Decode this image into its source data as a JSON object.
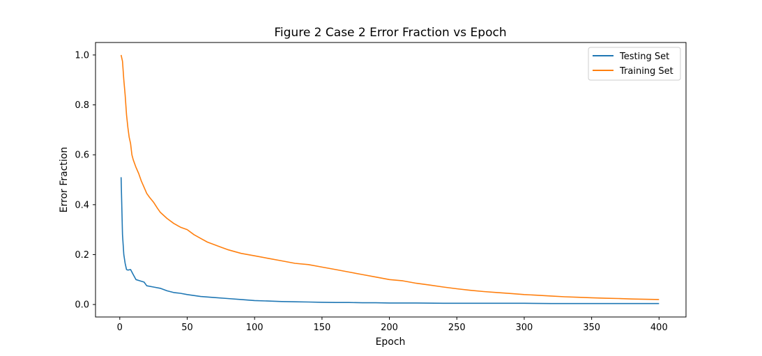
{
  "chart_data": {
    "type": "line",
    "title": "Figure 2 Case 2 Error Fraction vs Epoch",
    "xlabel": "Epoch",
    "ylabel": "Error Fraction",
    "xlim": [
      -18,
      420
    ],
    "ylim": [
      -0.05,
      1.05
    ],
    "x_ticks": [
      0,
      50,
      100,
      150,
      200,
      250,
      300,
      350,
      400
    ],
    "y_ticks": [
      0.0,
      0.2,
      0.4,
      0.6,
      0.8,
      1.0
    ],
    "x_tick_labels": [
      "0",
      "50",
      "100",
      "150",
      "200",
      "250",
      "300",
      "350",
      "400"
    ],
    "y_tick_labels": [
      "0.0",
      "0.2",
      "0.4",
      "0.6",
      "0.8",
      "1.0"
    ],
    "grid": false,
    "legend_position": "top-right",
    "series": [
      {
        "name": "Testing Set",
        "color": "#1f77b4",
        "x": [
          1,
          2,
          3,
          4,
          5,
          6,
          8,
          10,
          12,
          15,
          18,
          20,
          25,
          30,
          35,
          40,
          45,
          50,
          55,
          60,
          65,
          70,
          80,
          90,
          100,
          110,
          120,
          130,
          140,
          150,
          160,
          170,
          180,
          190,
          200,
          220,
          240,
          260,
          280,
          300,
          320,
          340,
          360,
          380,
          400
        ],
        "y": [
          0.51,
          0.28,
          0.2,
          0.165,
          0.14,
          0.138,
          0.14,
          0.12,
          0.1,
          0.095,
          0.09,
          0.075,
          0.07,
          0.065,
          0.055,
          0.048,
          0.045,
          0.04,
          0.036,
          0.032,
          0.03,
          0.028,
          0.024,
          0.02,
          0.016,
          0.014,
          0.012,
          0.011,
          0.01,
          0.009,
          0.008,
          0.008,
          0.007,
          0.007,
          0.006,
          0.006,
          0.005,
          0.005,
          0.005,
          0.005,
          0.004,
          0.004,
          0.004,
          0.004,
          0.004
        ]
      },
      {
        "name": "Training Set",
        "color": "#ff7f0e",
        "x": [
          1,
          2,
          3,
          4,
          5,
          6,
          7,
          8,
          9,
          10,
          12,
          14,
          16,
          18,
          20,
          22,
          25,
          28,
          30,
          35,
          40,
          45,
          50,
          55,
          60,
          65,
          70,
          75,
          80,
          90,
          100,
          110,
          120,
          130,
          140,
          150,
          160,
          170,
          180,
          190,
          200,
          210,
          220,
          230,
          240,
          250,
          260,
          270,
          280,
          290,
          300,
          310,
          320,
          330,
          340,
          350,
          360,
          370,
          380,
          390,
          400
        ],
        "y": [
          1.0,
          0.975,
          0.9,
          0.84,
          0.76,
          0.71,
          0.67,
          0.645,
          0.6,
          0.58,
          0.55,
          0.525,
          0.495,
          0.47,
          0.445,
          0.43,
          0.41,
          0.385,
          0.37,
          0.345,
          0.325,
          0.31,
          0.3,
          0.28,
          0.265,
          0.25,
          0.24,
          0.23,
          0.22,
          0.205,
          0.195,
          0.185,
          0.175,
          0.165,
          0.16,
          0.15,
          0.14,
          0.13,
          0.12,
          0.11,
          0.1,
          0.095,
          0.085,
          0.078,
          0.07,
          0.063,
          0.057,
          0.052,
          0.048,
          0.044,
          0.04,
          0.037,
          0.034,
          0.031,
          0.029,
          0.027,
          0.025,
          0.024,
          0.022,
          0.021,
          0.02
        ]
      }
    ]
  }
}
